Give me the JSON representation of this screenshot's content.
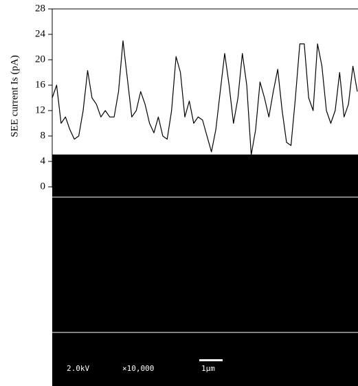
{
  "chart_data": {
    "type": "line",
    "ylabel": "SEE current Is (pA)",
    "ylim": [
      0,
      28
    ],
    "yticks": [
      0,
      4,
      8,
      12,
      16,
      20,
      24,
      28
    ],
    "color": "#000000",
    "values": [
      14,
      16,
      10,
      11,
      9,
      7.5,
      8,
      12,
      18.3,
      14,
      13,
      11,
      12,
      11,
      11,
      15,
      23,
      17,
      11,
      12,
      15,
      13,
      10,
      8.5,
      11,
      8,
      7.5,
      12,
      20.5,
      18,
      11,
      13.5,
      10,
      11,
      10.5,
      8,
      5.5,
      9,
      15,
      21,
      16,
      10,
      14,
      21,
      16,
      5,
      9,
      16.5,
      14,
      11,
      15,
      18.5,
      12,
      7,
      6.5,
      14,
      22.5,
      22.5,
      14,
      12,
      22.5,
      19,
      12,
      10,
      12,
      18,
      11,
      13,
      19,
      15
    ],
    "image_labels": {
      "voltage": "2.0kV",
      "magnification": "×10,000",
      "scale": "1μm"
    }
  }
}
